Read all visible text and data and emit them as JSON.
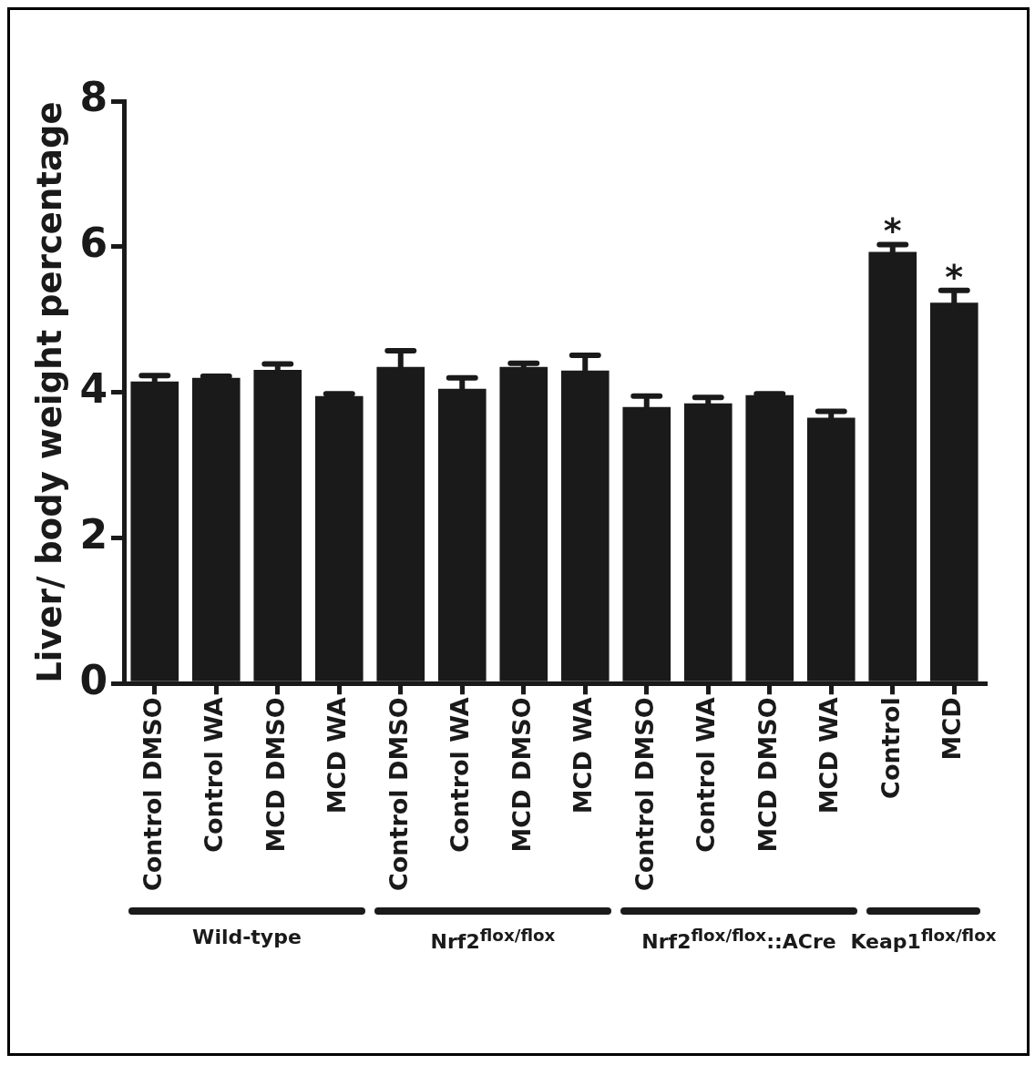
{
  "chart_data": {
    "type": "bar",
    "ylabel": "Liver/ body weight percentage",
    "categories": [
      "Control DMSO",
      "Control WA",
      "MCD DMSO",
      "MCD WA",
      "Control DMSO",
      "Control WA",
      "MCD DMSO",
      "MCD WA",
      "Control DMSO",
      "Control WA",
      "MCD DMSO",
      "MCD WA",
      "Control",
      "MCD"
    ],
    "values": [
      4.15,
      4.2,
      4.31,
      3.95,
      4.35,
      4.05,
      4.35,
      4.3,
      3.8,
      3.85,
      3.96,
      3.65,
      5.93,
      5.23
    ],
    "errors": [
      0.08,
      0.02,
      0.08,
      0.03,
      0.22,
      0.15,
      0.05,
      0.21,
      0.15,
      0.08,
      0.02,
      0.09,
      0.1,
      0.17
    ],
    "color": "#1a1a1a",
    "ylim": [
      0,
      8
    ],
    "yticks": [
      0,
      2,
      4,
      6,
      8
    ],
    "annotations": [
      {
        "text": "*",
        "x": "Control",
        "y": 6.03
      },
      {
        "text": "*",
        "x": "MCD",
        "y": 5.4
      },
      "Wild-type",
      "Nrf2$^{flox/flox}$",
      "Nrf2$^{flox/flox}$::ACre",
      "Keap1$^{flox/flox}$"
    ]
  }
}
